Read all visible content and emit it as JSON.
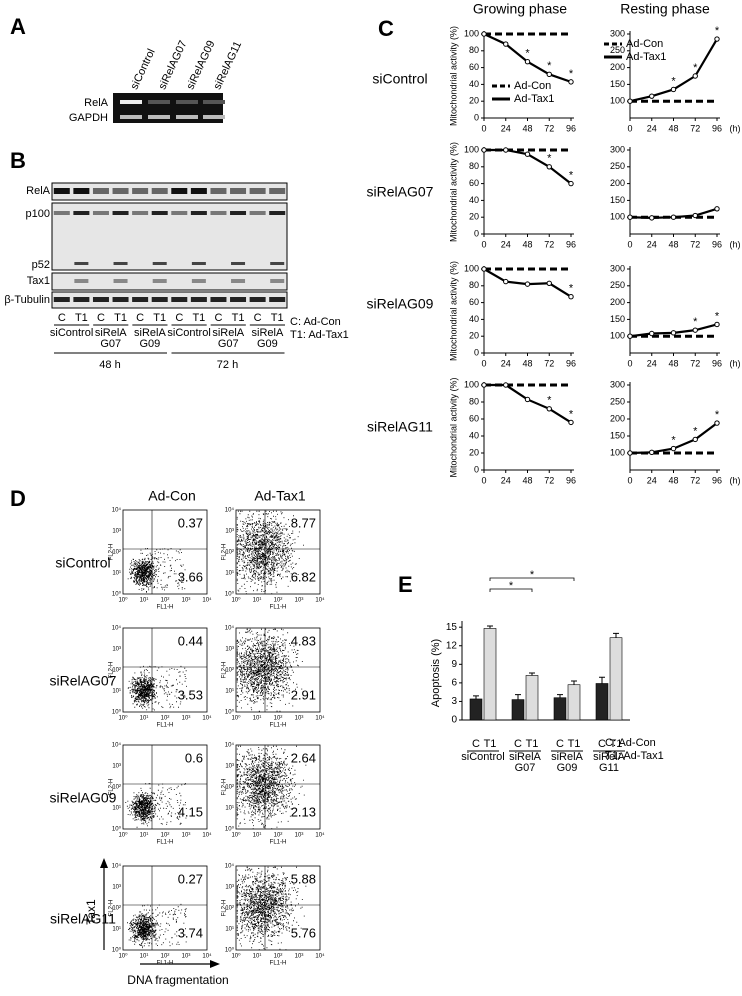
{
  "panels": {
    "A": {
      "label": "A",
      "lanes": [
        "siControl",
        "siRelAG07",
        "siRelAG09",
        "siRelAG11"
      ],
      "rows": [
        "RelA",
        "GAPDH"
      ]
    },
    "B": {
      "label": "B",
      "rows": [
        "RelA",
        "p100",
        "p52",
        "Tax1",
        "β-Tubulin"
      ],
      "lanes": [
        "C",
        "T1"
      ],
      "groups": [
        "siControl",
        "siRelA G07",
        "siRelA G09",
        "siControl",
        "siRelA G07",
        "siRelA G09"
      ],
      "times": [
        "48 h",
        "72 h"
      ],
      "notes": [
        "C: Ad-Con",
        "T1: Ad-Tax1"
      ]
    },
    "C": {
      "label": "C",
      "columns": [
        "Growing phase",
        "Resting phase"
      ],
      "rows": [
        "siControl",
        "siRelAG07",
        "siRelAG09",
        "siRelAG11"
      ]
    },
    "D": {
      "label": "D",
      "columns": [
        "Ad-Con",
        "Ad-Tax1"
      ],
      "rows": [
        {
          "label": "siControl",
          "values": [
            [
              0.37,
              3.66
            ],
            [
              8.77,
              6.82
            ]
          ]
        },
        {
          "label": "siRelAG07",
          "values": [
            [
              0.44,
              3.53
            ],
            [
              4.83,
              2.91
            ]
          ]
        },
        {
          "label": "siRelAG09",
          "values": [
            [
              0.6,
              4.15
            ],
            [
              2.64,
              2.13
            ]
          ]
        },
        {
          "label": "siRelAG11",
          "values": [
            [
              0.27,
              3.74
            ],
            [
              5.88,
              5.76
            ]
          ]
        }
      ],
      "y_label": "Tax1",
      "x_label": "DNA fragmentation",
      "plot_x_label": "FL1-H",
      "plot_y_label": "FL2-H",
      "plot_ticks": [
        "10⁰",
        "10¹",
        "10²",
        "10³",
        "10⁴"
      ]
    },
    "E": {
      "label": "E"
    }
  },
  "chart_data": [
    {
      "type": "line",
      "ylabel": "Mitochondrial activity (%)",
      "x": [
        0,
        24,
        48,
        72,
        96
      ],
      "xlim": [
        0,
        96
      ],
      "xticks": [
        0,
        24,
        48,
        72,
        96
      ],
      "ylim": [
        0,
        100
      ],
      "yticks": [
        0,
        20,
        40,
        60,
        80,
        100
      ],
      "legend": "lower left",
      "series": [
        {
          "name": "Ad-Con",
          "color": "#000000",
          "style": "dashed",
          "values": [
            100,
            100,
            100,
            100,
            100
          ]
        },
        {
          "name": "Ad-Tax1",
          "color": "#000000",
          "style": "solid",
          "values": [
            100,
            88,
            67,
            52,
            43
          ]
        }
      ],
      "annotations": [
        {
          "x": 48,
          "text": "*"
        },
        {
          "x": 72,
          "text": "*"
        },
        {
          "x": 96,
          "text": "*"
        }
      ]
    },
    {
      "type": "line",
      "xlabel": "(h)",
      "x": [
        0,
        24,
        48,
        72,
        96
      ],
      "xlim": [
        0,
        96
      ],
      "xticks": [
        0,
        24,
        48,
        72,
        96
      ],
      "ylim": [
        50,
        300
      ],
      "yticks": [
        100,
        150,
        200,
        250,
        300
      ],
      "legend": "upper left",
      "series": [
        {
          "name": "Ad-Con",
          "color": "#000000",
          "style": "dashed",
          "values": [
            100,
            100,
            100,
            100,
            100
          ]
        },
        {
          "name": "Ad-Tax1",
          "color": "#000000",
          "style": "solid",
          "values": [
            100,
            115,
            135,
            175,
            285
          ]
        }
      ],
      "annotations": [
        {
          "x": 48,
          "text": "*"
        },
        {
          "x": 72,
          "text": "*"
        },
        {
          "x": 96,
          "text": "*"
        }
      ]
    },
    {
      "type": "line",
      "ylabel": "Mitochondrial activity (%)",
      "x": [
        0,
        24,
        48,
        72,
        96
      ],
      "xlim": [
        0,
        96
      ],
      "xticks": [
        0,
        24,
        48,
        72,
        96
      ],
      "ylim": [
        0,
        100
      ],
      "yticks": [
        0,
        20,
        40,
        60,
        80,
        100
      ],
      "series": [
        {
          "color": "#000000",
          "style": "dashed",
          "values": [
            100,
            100,
            100,
            100,
            100
          ]
        },
        {
          "color": "#000000",
          "style": "solid",
          "values": [
            100,
            100,
            95,
            80,
            60
          ]
        }
      ],
      "annotations": [
        {
          "x": 72,
          "text": "*"
        },
        {
          "x": 96,
          "text": "*"
        }
      ]
    },
    {
      "type": "line",
      "xlabel": "(h)",
      "x": [
        0,
        24,
        48,
        72,
        96
      ],
      "xlim": [
        0,
        96
      ],
      "xticks": [
        0,
        24,
        48,
        72,
        96
      ],
      "ylim": [
        50,
        300
      ],
      "yticks": [
        100,
        150,
        200,
        250,
        300
      ],
      "series": [
        {
          "color": "#000000",
          "style": "dashed",
          "values": [
            100,
            100,
            100,
            100,
            100
          ]
        },
        {
          "color": "#000000",
          "style": "solid",
          "values": [
            100,
            98,
            100,
            105,
            125
          ]
        }
      ],
      "annotations": []
    },
    {
      "type": "line",
      "ylabel": "Mitochondrial activity (%)",
      "x": [
        0,
        24,
        48,
        72,
        96
      ],
      "xlim": [
        0,
        96
      ],
      "xticks": [
        0,
        24,
        48,
        72,
        96
      ],
      "ylim": [
        0,
        100
      ],
      "yticks": [
        0,
        20,
        40,
        60,
        80,
        100
      ],
      "series": [
        {
          "color": "#000000",
          "style": "dashed",
          "values": [
            100,
            100,
            100,
            100,
            100
          ]
        },
        {
          "color": "#000000",
          "style": "solid",
          "values": [
            100,
            85,
            82,
            83,
            67
          ]
        }
      ],
      "annotations": [
        {
          "x": 96,
          "text": "*"
        }
      ]
    },
    {
      "type": "line",
      "xlabel": "(h)",
      "x": [
        0,
        24,
        48,
        72,
        96
      ],
      "xlim": [
        0,
        96
      ],
      "xticks": [
        0,
        24,
        48,
        72,
        96
      ],
      "ylim": [
        50,
        300
      ],
      "yticks": [
        100,
        150,
        200,
        250,
        300
      ],
      "series": [
        {
          "color": "#000000",
          "style": "dashed",
          "values": [
            100,
            100,
            100,
            100,
            100
          ]
        },
        {
          "color": "#000000",
          "style": "solid",
          "values": [
            100,
            108,
            110,
            118,
            135
          ]
        }
      ],
      "annotations": [
        {
          "x": 72,
          "text": "*"
        },
        {
          "x": 96,
          "text": "*"
        }
      ]
    },
    {
      "type": "line",
      "ylabel": "Mitochondrial activity (%)",
      "x": [
        0,
        24,
        48,
        72,
        96
      ],
      "xlim": [
        0,
        96
      ],
      "xticks": [
        0,
        24,
        48,
        72,
        96
      ],
      "ylim": [
        0,
        100
      ],
      "yticks": [
        0,
        20,
        40,
        60,
        80,
        100
      ],
      "series": [
        {
          "color": "#000000",
          "style": "dashed",
          "values": [
            100,
            100,
            100,
            100,
            100
          ]
        },
        {
          "color": "#000000",
          "style": "solid",
          "values": [
            100,
            100,
            83,
            72,
            56
          ]
        }
      ],
      "annotations": [
        {
          "x": 72,
          "text": "*"
        },
        {
          "x": 96,
          "text": "*"
        }
      ]
    },
    {
      "type": "line",
      "xlabel": "(h)",
      "x": [
        0,
        24,
        48,
        72,
        96
      ],
      "xlim": [
        0,
        96
      ],
      "xticks": [
        0,
        24,
        48,
        72,
        96
      ],
      "ylim": [
        50,
        300
      ],
      "yticks": [
        100,
        150,
        200,
        250,
        300
      ],
      "series": [
        {
          "color": "#000000",
          "style": "dashed",
          "values": [
            100,
            100,
            100,
            100,
            100
          ]
        },
        {
          "color": "#000000",
          "style": "solid",
          "values": [
            100,
            102,
            113,
            140,
            188
          ]
        }
      ],
      "annotations": [
        {
          "x": 48,
          "text": "*"
        },
        {
          "x": 72,
          "text": "*"
        },
        {
          "x": 96,
          "text": "*"
        }
      ]
    },
    {
      "type": "bar",
      "ylabel": "Apoptosis (%)",
      "ylim": [
        0,
        16
      ],
      "yticks": [
        0,
        3,
        6,
        9,
        12,
        15
      ],
      "categories": [
        "siControl",
        "siRelA G07",
        "siRelA G09",
        "siRelA G11"
      ],
      "series": [
        {
          "name": "C",
          "color": "#222222",
          "values": [
            3.4,
            3.3,
            3.6,
            5.9
          ],
          "errors": [
            0.5,
            0.8,
            0.5,
            1.0
          ]
        },
        {
          "name": "T1",
          "color": "#dddddd",
          "values": [
            14.8,
            7.2,
            5.7,
            13.3
          ],
          "errors": [
            0.4,
            0.4,
            0.6,
            0.7
          ]
        }
      ],
      "notes": [
        "C: Ad-Con",
        "T1: Ad-Tax1"
      ],
      "significance": [
        "*",
        "*"
      ]
    }
  ]
}
